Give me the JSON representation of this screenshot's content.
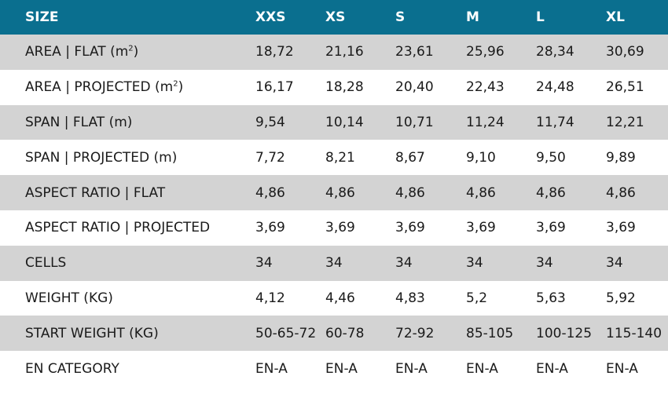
{
  "header": {
    "label": "SIZE",
    "sizes": [
      "XXS",
      "XS",
      "S",
      "M",
      "L",
      "XL"
    ]
  },
  "rows": [
    {
      "label": "AREA | FLAT (m",
      "unit_sup": "2",
      "label_suffix": ")",
      "values": [
        "18,72",
        "21,16",
        "23,61",
        "25,96",
        "28,34",
        "30,69"
      ]
    },
    {
      "label": "AREA | PROJECTED (m",
      "unit_sup": "2",
      "label_suffix": ")",
      "values": [
        "16,17",
        "18,28",
        "20,40",
        "22,43",
        "24,48",
        "26,51"
      ]
    },
    {
      "label": "SPAN | FLAT (m)",
      "values": [
        "9,54",
        "10,14",
        "10,71",
        "11,24",
        "11,74",
        "12,21"
      ]
    },
    {
      "label": "SPAN | PROJECTED (m)",
      "values": [
        "7,72",
        "8,21",
        "8,67",
        "9,10",
        "9,50",
        "9,89"
      ]
    },
    {
      "label": "ASPECT RATIO | FLAT",
      "values": [
        "4,86",
        "4,86",
        "4,86",
        "4,86",
        "4,86",
        "4,86"
      ]
    },
    {
      "label": "ASPECT RATIO | PROJECTED",
      "values": [
        "3,69",
        "3,69",
        "3,69",
        "3,69",
        "3,69",
        "3,69"
      ]
    },
    {
      "label": "CELLS",
      "values": [
        "34",
        "34",
        "34",
        "34",
        "34",
        "34"
      ]
    },
    {
      "label": "WEIGHT (KG)",
      "values": [
        "4,12",
        "4,46",
        "4,83",
        "5,2",
        "5,63",
        "5,92"
      ]
    },
    {
      "label": "START WEIGHT (KG)",
      "values": [
        "50-65-72",
        "60-78",
        "72-92",
        "85-105",
        "100-125",
        "115-140"
      ]
    },
    {
      "label": "EN CATEGORY",
      "values": [
        "EN-A",
        "EN-A",
        "EN-A",
        "EN-A",
        "EN-A",
        "EN-A"
      ]
    }
  ],
  "colors": {
    "header_bg": "#0a6f8f",
    "shaded_row": "#d3d3d3",
    "plain_row": "#ffffff"
  }
}
